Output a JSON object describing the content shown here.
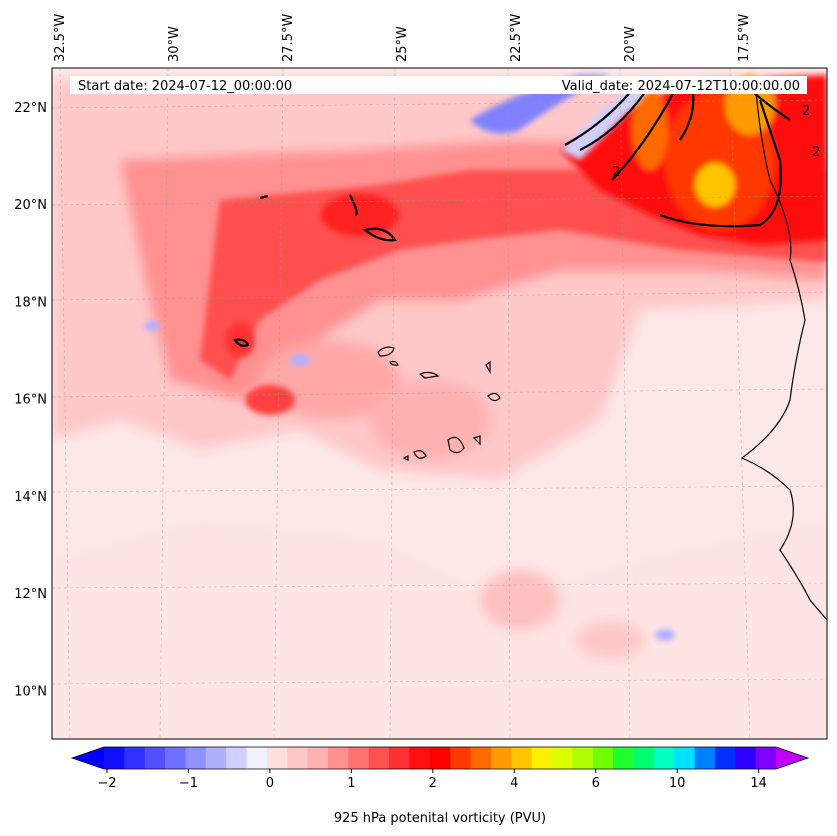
{
  "map": {
    "start_label": "Start date: 2024-07-12_00:00:00",
    "valid_label": "Valid_date: 2024-07-12T10:00:00.00",
    "extent": {
      "lon_min": -32.5,
      "lon_max": -15.5,
      "lat_min": 9.0,
      "lat_max": 22.8
    },
    "longitude_ticks": [
      {
        "value": -32.5,
        "label": "32.5°W"
      },
      {
        "value": -30.0,
        "label": "30°W"
      },
      {
        "value": -27.5,
        "label": "27.5°W"
      },
      {
        "value": -25.0,
        "label": "25°W"
      },
      {
        "value": -22.5,
        "label": "22.5°W"
      },
      {
        "value": -20.0,
        "label": "20°W"
      },
      {
        "value": -17.5,
        "label": "17.5°W"
      }
    ],
    "latitude_ticks": [
      {
        "value": 22,
        "label": "22°N"
      },
      {
        "value": 20,
        "label": "20°N"
      },
      {
        "value": 18,
        "label": "18°N"
      },
      {
        "value": 16,
        "label": "16°N"
      },
      {
        "value": 14,
        "label": "14°N"
      },
      {
        "value": 12,
        "label": "12°N"
      },
      {
        "value": 10,
        "label": "10°N"
      }
    ],
    "contour_label": "2",
    "background_color": "#fde8e8"
  },
  "colorbar": {
    "title": "925 hPa potenital vorticity (PVU)",
    "tick_labels": [
      "−2",
      "−1",
      "0",
      "1",
      "2",
      "4",
      "6",
      "10",
      "14"
    ],
    "colors": [
      "#1010ff",
      "#3030ff",
      "#5050ff",
      "#7070ff",
      "#9090ff",
      "#b0b0ff",
      "#d0d0ff",
      "#f0f0ff",
      "#ffe0e0",
      "#ffc8c8",
      "#ffb0b0",
      "#ff9090",
      "#ff7070",
      "#ff5050",
      "#ff3030",
      "#ff1010",
      "#ff0000",
      "#ff3800",
      "#ff6a00",
      "#ff9a00",
      "#ffc400",
      "#ffef00",
      "#dcff00",
      "#b0ff00",
      "#70ff00",
      "#20ff30",
      "#00ff70",
      "#00ffc0",
      "#00e0ff",
      "#0080ff",
      "#0030ff",
      "#3000ff",
      "#8000ff"
    ],
    "under_color": "#0000ff",
    "over_color": "#c000ff"
  }
}
